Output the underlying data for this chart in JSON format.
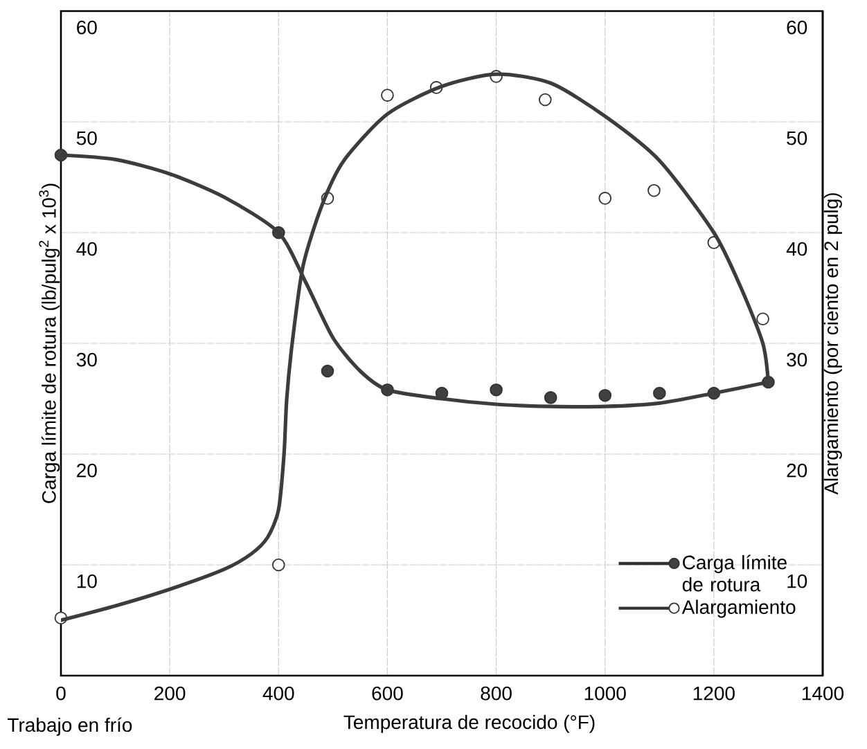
{
  "chart_data": {
    "type": "scatter",
    "xlabel": "Temperatura de recocido (°F)",
    "ylabel": "Carga límite de rotura (lb/pulg$^{2}$ x 10$^{3}$)",
    "y2label": "Alargamiento (por ciento en 2 pulg)",
    "annotations": [
      "Trabajo en frío"
    ],
    "xlim": [
      0,
      1400
    ],
    "xticks": [
      0,
      200,
      400,
      600,
      800,
      1000,
      1200,
      1400
    ],
    "ylim": [
      0,
      60
    ],
    "yticks": [
      10,
      20,
      30,
      40,
      50,
      60
    ],
    "y2lim": [
      0,
      60
    ],
    "y2ticks": [
      10,
      20,
      30,
      40,
      50,
      60
    ],
    "grid": true,
    "legend": "bottom right",
    "series": [
      {
        "name": "Carga límite de rotura",
        "marker": "circle",
        "color": "#404040",
        "x": [
          0,
          400,
          490,
          600,
          700,
          800,
          900,
          1000,
          1100,
          1200,
          1300
        ],
        "values": [
          47,
          40,
          27.5,
          25.8,
          25.5,
          25.8,
          25.1,
          25.3,
          25.5,
          25.5,
          26.5
        ]
      },
      {
        "type": "line",
        "color": "#3c3c3c",
        "x": [
          0,
          100,
          200,
          300,
          400,
          450,
          500,
          550,
          600,
          700,
          800,
          900,
          1000,
          1100,
          1200,
          1300
        ],
        "values": [
          47,
          46.6,
          45.3,
          43.2,
          40,
          35.5,
          30.5,
          27.5,
          25.8,
          25,
          24.5,
          24.3,
          24.3,
          24.6,
          25.5,
          26.5
        ]
      },
      {
        "name": "Alargamiento",
        "axis": "y2",
        "marker": "circle",
        "color": "#ffffff",
        "x": [
          0,
          400,
          490,
          600,
          690,
          800,
          890,
          1000,
          1090,
          1200,
          1290
        ],
        "values": [
          5.2,
          10,
          43.1,
          52.4,
          53.1,
          54.1,
          52,
          43.1,
          43.8,
          39.1,
          32.2
        ]
      },
      {
        "type": "line",
        "axis": "y2",
        "color": "#3c3c3c",
        "x": [
          0,
          100,
          200,
          300,
          350,
          380,
          400,
          410,
          415,
          425,
          445,
          480,
          520,
          600,
          700,
          800,
          900,
          1000,
          1100,
          1200,
          1250,
          1290,
          1300
        ],
        "values": [
          5,
          6.3,
          7.8,
          9.6,
          11,
          12.5,
          15,
          20,
          25,
          30,
          37,
          42.5,
          46.5,
          50.7,
          53.2,
          54.3,
          53.5,
          50.5,
          46.5,
          40,
          35,
          30,
          26.5
        ]
      }
    ]
  }
}
